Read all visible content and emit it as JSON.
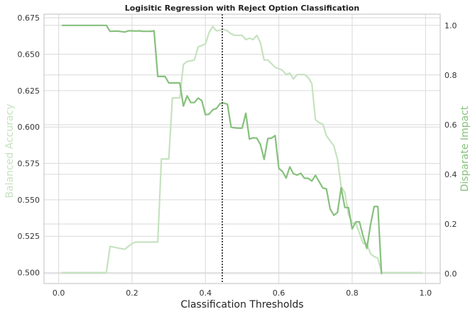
{
  "chart_data": {
    "type": "line",
    "title": "Logisitic Regression with Reject Option Classification",
    "xlabel": "Classification Thresholds",
    "ylabel_left": "Balanced Accuracy",
    "ylabel_right": "Disparate Impact",
    "xlim": [
      -0.04,
      1.04
    ],
    "ylim_left": [
      0.4925,
      0.6775
    ],
    "ylim_right": [
      -0.04,
      1.045
    ],
    "x_ticks": [
      "0.0",
      "0.2",
      "0.4",
      "0.6",
      "0.8",
      "1.0"
    ],
    "y_left_ticks": [
      "0.500",
      "0.525",
      "0.550",
      "0.575",
      "0.600",
      "0.625",
      "0.650",
      "0.675"
    ],
    "y_right_ticks": [
      "0.0",
      "0.2",
      "0.4",
      "0.6",
      "0.8",
      "1.0"
    ],
    "grid": true,
    "vline": {
      "x": 0.446,
      "style": "dotted"
    },
    "colors": {
      "left_series": "#c6e2c0",
      "right_series": "#86c07c",
      "left_label": "#c6e2c0",
      "right_label": "#86c07c",
      "vline": "#222222",
      "grid": "#d9d9d9"
    },
    "series": [
      {
        "axis": "left",
        "x": [
          0.01,
          0.13,
          0.14,
          0.16,
          0.18,
          0.19,
          0.2,
          0.21,
          0.27,
          0.28,
          0.3,
          0.31,
          0.33,
          0.34,
          0.35,
          0.37,
          0.38,
          0.39,
          0.4,
          0.41,
          0.42,
          0.43,
          0.45,
          0.46,
          0.47,
          0.48,
          0.5,
          0.51,
          0.52,
          0.53,
          0.54,
          0.55,
          0.56,
          0.57,
          0.59,
          0.6,
          0.61,
          0.62,
          0.63,
          0.64,
          0.65,
          0.67,
          0.68,
          0.69,
          0.7,
          0.71,
          0.72,
          0.73,
          0.75,
          0.76,
          0.77,
          0.78,
          0.79,
          0.8,
          0.81,
          0.82,
          0.83,
          0.84,
          0.85,
          0.86,
          0.87,
          0.88,
          0.89,
          0.99
        ],
        "values": [
          0.5,
          0.5,
          0.518,
          0.517,
          0.516,
          0.518,
          0.52,
          0.521,
          0.521,
          0.578,
          0.578,
          0.62,
          0.62,
          0.643,
          0.645,
          0.646,
          0.655,
          0.656,
          0.657,
          0.665,
          0.669,
          0.666,
          0.667,
          0.666,
          0.664,
          0.663,
          0.663,
          0.66,
          0.661,
          0.66,
          0.663,
          0.658,
          0.646,
          0.646,
          0.641,
          0.64,
          0.639,
          0.636,
          0.637,
          0.633,
          0.636,
          0.636,
          0.634,
          0.63,
          0.605,
          0.603,
          0.602,
          0.594,
          0.587,
          0.578,
          0.559,
          0.555,
          0.54,
          0.534,
          0.534,
          0.527,
          0.52,
          0.52,
          0.513,
          0.511,
          0.51,
          0.5,
          0.5,
          0.5
        ]
      },
      {
        "axis": "right",
        "x": [
          0.01,
          0.13,
          0.14,
          0.16,
          0.18,
          0.19,
          0.2,
          0.21,
          0.22,
          0.23,
          0.25,
          0.26,
          0.27,
          0.28,
          0.29,
          0.3,
          0.31,
          0.32,
          0.33,
          0.34,
          0.35,
          0.36,
          0.37,
          0.38,
          0.39,
          0.4,
          0.41,
          0.42,
          0.43,
          0.44,
          0.45,
          0.46,
          0.47,
          0.48,
          0.49,
          0.5,
          0.51,
          0.52,
          0.53,
          0.54,
          0.55,
          0.56,
          0.57,
          0.58,
          0.59,
          0.6,
          0.61,
          0.62,
          0.63,
          0.64,
          0.65,
          0.66,
          0.67,
          0.68,
          0.69,
          0.7,
          0.71,
          0.72,
          0.73,
          0.74,
          0.75,
          0.76,
          0.77,
          0.78,
          0.79,
          0.8,
          0.81,
          0.82,
          0.83,
          0.84,
          0.85,
          0.86,
          0.87,
          0.88
        ],
        "values": [
          1.0,
          1.0,
          0.976,
          0.977,
          0.973,
          0.978,
          0.978,
          0.977,
          0.978,
          0.976,
          0.976,
          0.978,
          0.794,
          0.794,
          0.794,
          0.768,
          0.768,
          0.768,
          0.768,
          0.675,
          0.716,
          0.689,
          0.689,
          0.707,
          0.697,
          0.64,
          0.642,
          0.66,
          0.665,
          0.685,
          0.687,
          0.682,
          0.59,
          0.587,
          0.586,
          0.586,
          0.646,
          0.542,
          0.547,
          0.546,
          0.52,
          0.46,
          0.544,
          0.546,
          0.556,
          0.424,
          0.411,
          0.385,
          0.43,
          0.402,
          0.397,
          0.404,
          0.384,
          0.384,
          0.373,
          0.396,
          0.37,
          0.345,
          0.341,
          0.26,
          0.235,
          0.246,
          0.346,
          0.266,
          0.266,
          0.18,
          0.208,
          0.208,
          0.15,
          0.101,
          0.196,
          0.27,
          0.27,
          0.0
        ]
      }
    ]
  }
}
